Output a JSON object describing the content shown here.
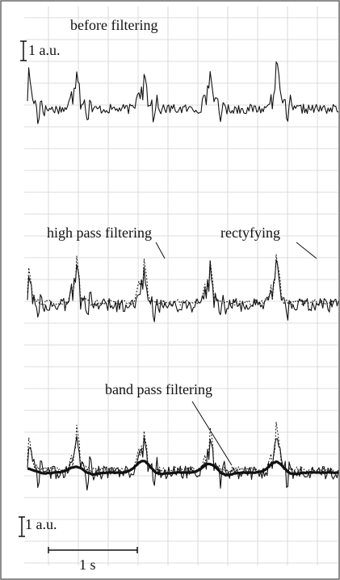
{
  "chart_data": {
    "type": "line",
    "x_unit": "s",
    "scale_bars": {
      "amplitude_top": "1 a.u.",
      "amplitude_bottom": "1 a.u.",
      "time": "1 s"
    },
    "grid": true,
    "beats_at_s": [
      0.0,
      0.55,
      1.3,
      2.05,
      2.8
    ],
    "panels": [
      {
        "id": "top",
        "title": "before filtering",
        "series": [
          {
            "style": "solid",
            "peak_heights": [
              1.8,
              1.6,
              1.75,
              1.55,
              1.9
            ],
            "trough_depths": [
              -1.3,
              -1.4,
              -1.1,
              -1.2,
              -1.2
            ],
            "noise": 0.25
          }
        ]
      },
      {
        "id": "middle",
        "annotations": [
          "high pass filtering",
          "rectyfying"
        ],
        "series": [
          {
            "style": "dotted",
            "peak_heights": [
              1.7,
              1.8,
              1.9,
              1.7,
              1.9
            ],
            "trough_depths": [
              0.0,
              0.0,
              0.0,
              0.0,
              0.0
            ],
            "noise": 0.3
          },
          {
            "style": "solid",
            "peak_heights": [
              1.5,
              1.7,
              1.5,
              1.6,
              1.7
            ],
            "trough_depths": [
              -1.3,
              -1.4,
              -1.3,
              -1.2,
              -1.4
            ],
            "noise": 0.35
          }
        ]
      },
      {
        "id": "bottom",
        "annotations": [
          "band pass filtering"
        ],
        "series": [
          {
            "style": "dotted",
            "peak_heights": [
              1.6,
              1.7,
              1.8,
              1.7,
              1.8
            ],
            "trough_depths": [
              0.0,
              0.0,
              0.0,
              0.0,
              0.0
            ],
            "noise": 0.3
          },
          {
            "style": "solid",
            "peak_heights": [
              1.4,
              1.6,
              1.5,
              1.5,
              1.6
            ],
            "trough_depths": [
              -1.4,
              -1.3,
              -1.3,
              -1.2,
              -1.3
            ],
            "noise": 0.35
          },
          {
            "style": "bold",
            "peak_heights": [
              0.2,
              0.3,
              0.6,
              0.45,
              0.55
            ],
            "trough_depths": [
              -0.05,
              -0.1,
              -0.1,
              -0.15,
              -0.1
            ],
            "noise": 0.04
          }
        ]
      }
    ]
  }
}
